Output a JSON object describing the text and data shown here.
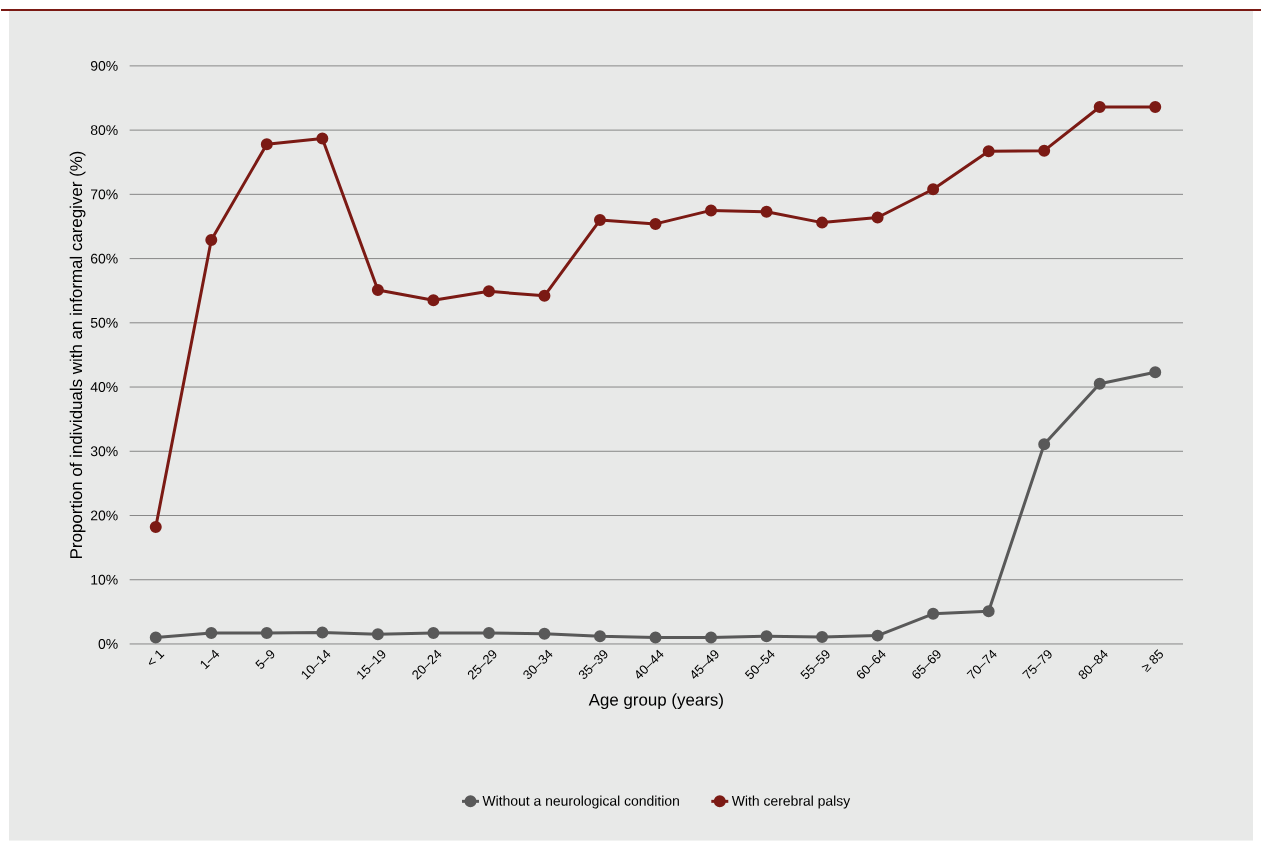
{
  "chart_data": {
    "type": "line",
    "xlabel": "Age group (years)",
    "ylabel": "Proportion of individuals with an informal caregiver (%)",
    "categories": [
      "< 1",
      "1–4",
      "5–9",
      "10–14",
      "15–19",
      "20–24",
      "25–29",
      "30–34",
      "35–39",
      "40–44",
      "45–49",
      "50–54",
      "55–59",
      "60–64",
      "65–69",
      "70–74",
      "75–79",
      "80–84",
      "≥ 85"
    ],
    "series": [
      {
        "name": "Without a neurological condition",
        "color": "#595959",
        "values": [
          1.0,
          1.7,
          1.7,
          1.8,
          1.5,
          1.7,
          1.7,
          1.6,
          1.2,
          1.0,
          1.0,
          1.2,
          1.1,
          1.3,
          4.7,
          5.1,
          31.1,
          40.5,
          42.3
        ]
      },
      {
        "name": "With cerebral palsy",
        "color": "#7b1a14",
        "values": [
          18.2,
          62.9,
          77.8,
          78.7,
          55.1,
          53.5,
          54.9,
          54.2,
          66.0,
          65.4,
          67.5,
          67.3,
          65.6,
          66.4,
          70.8,
          76.7,
          76.8,
          83.6,
          83.6
        ]
      }
    ],
    "ylim": [
      0,
      90
    ],
    "yticks": [
      {
        "value": 0,
        "label": "0%"
      },
      {
        "value": 10,
        "label": "10%"
      },
      {
        "value": 20,
        "label": "20%"
      },
      {
        "value": 30,
        "label": "30%"
      },
      {
        "value": 40,
        "label": "40%"
      },
      {
        "value": 50,
        "label": "50%"
      },
      {
        "value": 60,
        "label": "60%"
      },
      {
        "value": 70,
        "label": "70%"
      },
      {
        "value": 80,
        "label": "80%"
      },
      {
        "value": 90,
        "label": "90%"
      }
    ],
    "grid": "y",
    "legend": "bottom",
    "marker": "circle",
    "line_style": "solid"
  }
}
